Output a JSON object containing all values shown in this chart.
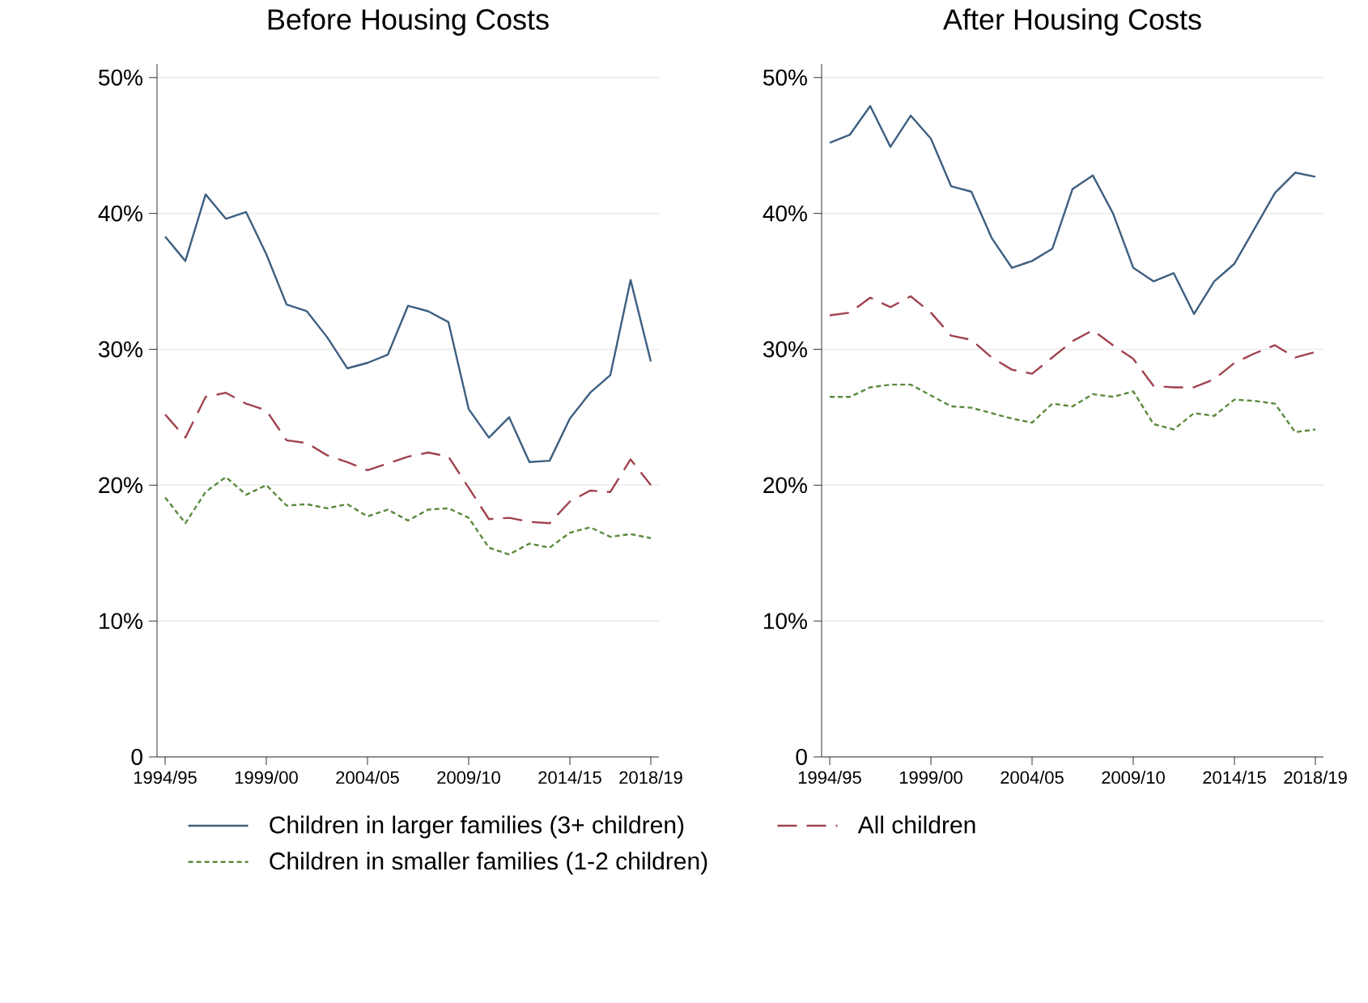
{
  "chart_data": [
    {
      "type": "line",
      "title": "Before Housing Costs",
      "categories": [
        "1994/95",
        null,
        null,
        null,
        null,
        "1999/00",
        null,
        null,
        null,
        null,
        "2004/05",
        null,
        null,
        null,
        null,
        "2009/10",
        null,
        null,
        null,
        null,
        "2014/15",
        null,
        null,
        null,
        "2018/19"
      ],
      "series": [
        {
          "name": "Children in larger families (3+ children)",
          "color": "#3e5f80",
          "line_style": "solid",
          "values": [
            38.3,
            36.5,
            41.4,
            39.6,
            40.1,
            37.0,
            33.3,
            32.8,
            30.9,
            28.6,
            29.0,
            29.6,
            33.2,
            32.8,
            32.0,
            25.6,
            23.5,
            25.0,
            21.7,
            21.8,
            24.9,
            26.8,
            28.1,
            35.1,
            29.1
          ]
        },
        {
          "name": "All children",
          "color": "#a0434e",
          "line_style": "dashed",
          "values": [
            25.2,
            23.5,
            26.5,
            26.8,
            26.0,
            25.5,
            23.3,
            23.1,
            22.2,
            21.7,
            21.1,
            21.6,
            22.1,
            22.4,
            22.1,
            19.8,
            17.5,
            17.6,
            17.3,
            17.2,
            18.8,
            19.6,
            19.5,
            21.9,
            20.0
          ]
        },
        {
          "name": "Children in smaller families (1-2 children)",
          "color": "#5a8a3c",
          "line_style": "dotted",
          "values": [
            19.1,
            17.2,
            19.5,
            20.6,
            19.3,
            20.0,
            18.5,
            18.6,
            18.3,
            18.6,
            17.7,
            18.2,
            17.4,
            18.2,
            18.3,
            17.6,
            15.4,
            14.9,
            15.7,
            15.4,
            16.5,
            16.9,
            16.2,
            16.4,
            16.1
          ]
        }
      ],
      "ylim": [
        0,
        51
      ],
      "yticks": [
        0,
        {
          "value": 10,
          "label": "10%"
        },
        {
          "value": 20,
          "label": "20%"
        },
        {
          "value": 30,
          "label": "30%"
        },
        {
          "value": 40,
          "label": "40%"
        },
        {
          "value": 50,
          "label": "50%"
        }
      ],
      "grid": "y",
      "legend": "bottom"
    },
    {
      "type": "line",
      "title": "After Housing Costs",
      "categories": [
        "1994/95",
        null,
        null,
        null,
        null,
        "1999/00",
        null,
        null,
        null,
        null,
        "2004/05",
        null,
        null,
        null,
        null,
        "2009/10",
        null,
        null,
        null,
        null,
        "2014/15",
        null,
        null,
        null,
        "2018/19"
      ],
      "series": [
        {
          "color": "#3e5f80",
          "line_style": "solid",
          "values": [
            45.2,
            45.8,
            47.9,
            44.9,
            47.2,
            45.5,
            42.0,
            41.6,
            38.2,
            36.0,
            36.5,
            37.4,
            41.8,
            42.8,
            40.0,
            36.0,
            35.0,
            35.6,
            32.6,
            35.0,
            36.3,
            38.9,
            41.5,
            43.0,
            42.7
          ]
        },
        {
          "color": "#a0434e",
          "line_style": "dashed",
          "values": [
            32.5,
            32.7,
            33.8,
            33.1,
            33.9,
            32.7,
            31.0,
            30.7,
            29.4,
            28.5,
            28.2,
            29.4,
            30.6,
            31.4,
            30.3,
            29.3,
            27.3,
            27.2,
            27.2,
            27.8,
            29.0,
            29.7,
            30.3,
            29.4,
            29.8
          ]
        },
        {
          "color": "#5a8a3c",
          "line_style": "dotted",
          "values": [
            26.5,
            26.5,
            27.2,
            27.4,
            27.4,
            26.6,
            25.8,
            25.7,
            25.3,
            24.9,
            24.6,
            26.0,
            25.8,
            26.7,
            26.5,
            26.9,
            24.5,
            24.1,
            25.3,
            25.1,
            26.3,
            26.2,
            26.0,
            23.9,
            24.1
          ]
        }
      ],
      "ylim": [
        0,
        51
      ],
      "yticks": [
        0,
        {
          "value": 10,
          "label": "10%"
        },
        {
          "value": 20,
          "label": "20%"
        },
        {
          "value": 30,
          "label": "30%"
        },
        {
          "value": 40,
          "label": "40%"
        },
        {
          "value": 50,
          "label": "50%"
        }
      ],
      "grid": "y"
    }
  ]
}
